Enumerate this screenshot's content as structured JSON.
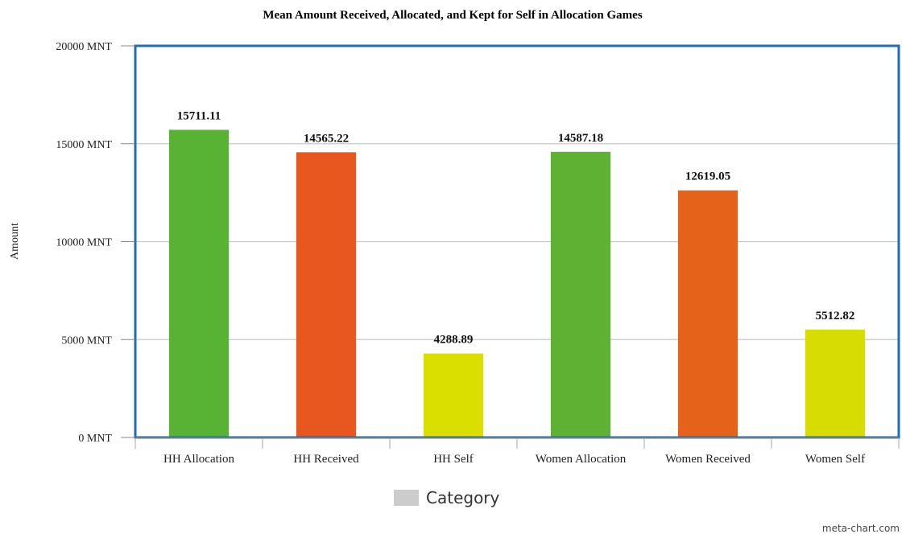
{
  "chart_data": {
    "type": "bar",
    "title": "Mean Amount Received, Allocated, and Kept for Self in Allocation Games",
    "xlabel": "",
    "ylabel": "Amount",
    "ylim": [
      0,
      20000
    ],
    "y_ticks": [
      {
        "value": 0,
        "label": "0 MNT"
      },
      {
        "value": 5000,
        "label": "5000 MNT"
      },
      {
        "value": 10000,
        "label": "10000 MNT"
      },
      {
        "value": 15000,
        "label": "15000 MNT"
      },
      {
        "value": 20000,
        "label": "20000 MNT"
      }
    ],
    "categories": [
      "HH Allocation",
      "HH Received",
      "HH Self",
      "Women Allocation",
      "Women Received",
      "Women Self"
    ],
    "values": [
      15711.11,
      14565.22,
      4288.89,
      14587.18,
      12619.05,
      5512.82
    ],
    "data_labels": [
      "15711.11",
      "14565.22",
      "4288.89",
      "14587.18",
      "12619.05",
      "5512.82"
    ],
    "bar_colors": [
      "#58b234",
      "#e8571e",
      "#dadf00",
      "#5eb132",
      "#e5621a",
      "#d7dd02"
    ],
    "grid": true,
    "legend": {
      "position": "bottom",
      "entries": [
        {
          "label": "Category",
          "color": "#cccccc"
        }
      ]
    },
    "frame_color": "#1f6eb3"
  },
  "credit": "meta-chart.com"
}
